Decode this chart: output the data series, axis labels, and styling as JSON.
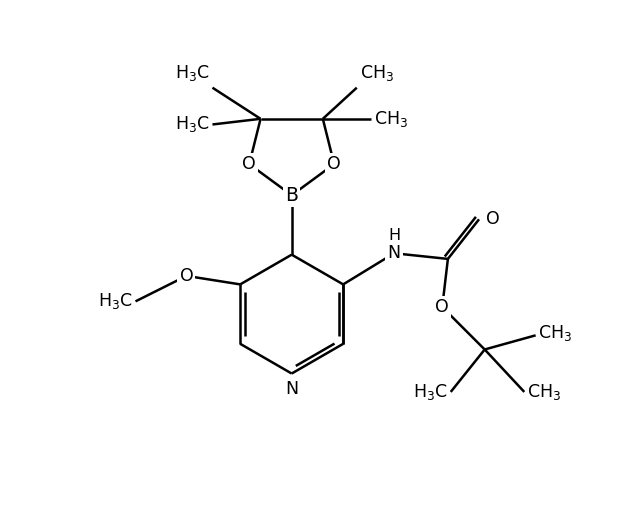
{
  "bg_color": "#ffffff",
  "line_color": "#000000",
  "line_width": 1.8,
  "font_size": 12.5,
  "fig_width": 6.4,
  "fig_height": 5.15,
  "dpi": 100,
  "xlim": [
    0,
    10
  ],
  "ylim": [
    0,
    9
  ]
}
